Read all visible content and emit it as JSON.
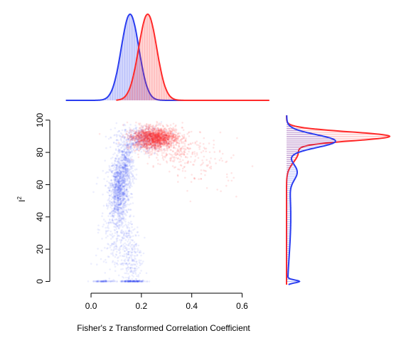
{
  "chart_data": {
    "type": "scatter",
    "title": "",
    "xlabel": "Fisher's z Transformed Correlation Coefficient",
    "ylabel": "I",
    "ylabel_superscript": "2",
    "xlim": [
      -0.13,
      0.72
    ],
    "ylim": [
      -2,
      103
    ],
    "x_ticks": [
      0.0,
      0.2,
      0.4,
      0.6
    ],
    "x_tick_labels": [
      "0.0",
      "0.2",
      "0.4",
      "0.6"
    ],
    "y_ticks": [
      0,
      20,
      40,
      60,
      80,
      100
    ],
    "y_tick_labels": [
      "0",
      "20",
      "40",
      "60",
      "80",
      "100"
    ],
    "grid": false,
    "legend": "none",
    "colors": {
      "blue": "#2a3df0",
      "red": "#ff2a2a",
      "axis": "#000000"
    },
    "series": [
      {
        "color": "blue",
        "clusters": [
          {
            "cx": 0.11,
            "cy": 57,
            "sx": 0.018,
            "sy": 10,
            "n": 900
          },
          {
            "cx": 0.14,
            "cy": 72,
            "sx": 0.015,
            "sy": 8,
            "n": 400
          },
          {
            "cx": 0.1,
            "cy": 35,
            "sx": 0.03,
            "sy": 16,
            "n": 350
          },
          {
            "cx": 0.16,
            "cy": 15,
            "sx": 0.022,
            "sy": 12,
            "n": 250
          },
          {
            "cx": 0.2,
            "cy": 88,
            "sx": 0.05,
            "sy": 4,
            "n": 500
          },
          {
            "cx": 0.05,
            "cy": 0,
            "sx": 0.02,
            "sy": 0.3,
            "n": 80
          },
          {
            "cx": 0.17,
            "cy": 0,
            "sx": 0.025,
            "sy": 0.3,
            "n": 150
          }
        ],
        "marginal_x": {
          "mean": 0.155,
          "sd": 0.035,
          "range": [
            -0.1,
            0.62
          ]
        },
        "marginal_y": [
          {
            "mean": 87,
            "sd": 4,
            "w": 0.55
          },
          {
            "mean": 68,
            "sd": 5,
            "w": 0.12
          },
          {
            "mean": 40,
            "sd": 25,
            "w": 0.3
          },
          {
            "mean": 0,
            "sd": 0.9,
            "w": 0.03
          }
        ]
      },
      {
        "color": "red",
        "clusters": [
          {
            "cx": 0.25,
            "cy": 89,
            "sx": 0.045,
            "sy": 3.2,
            "n": 1700
          },
          {
            "cx": 0.34,
            "cy": 82,
            "sx": 0.07,
            "sy": 6,
            "n": 250
          },
          {
            "cx": 0.45,
            "cy": 72,
            "sx": 0.07,
            "sy": 8,
            "n": 80
          }
        ],
        "marginal_x": {
          "mean": 0.225,
          "sd": 0.036,
          "range": [
            0.1,
            0.71
          ]
        },
        "marginal_y": [
          {
            "mean": 90,
            "sd": 2.8,
            "w": 0.8
          },
          {
            "mean": 80,
            "sd": 6,
            "w": 0.2
          }
        ]
      }
    ]
  }
}
